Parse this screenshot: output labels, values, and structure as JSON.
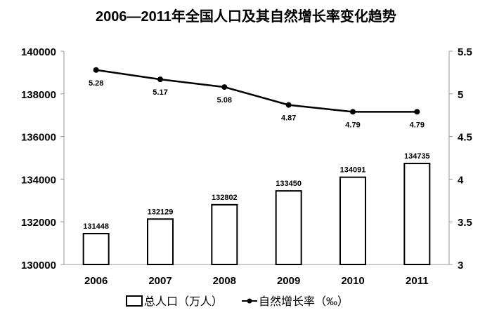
{
  "chart_data": {
    "type": "bar+line",
    "title": "2006—2011年全国人口及其自然增长率变化趋势",
    "categories": [
      "2006",
      "2007",
      "2008",
      "2009",
      "2010",
      "2011"
    ],
    "series": [
      {
        "name": "总人口（万人）",
        "type": "bar",
        "axis": "left",
        "values": [
          131448,
          132129,
          132802,
          133450,
          134091,
          134735
        ],
        "labels": [
          "131448",
          "132129",
          "132802",
          "133450",
          "134091",
          "134735"
        ]
      },
      {
        "name": "自然增长率（‰）",
        "type": "line",
        "axis": "right",
        "values": [
          5.28,
          5.17,
          5.08,
          4.87,
          4.79,
          4.79
        ],
        "labels": [
          "5.28",
          "5.17",
          "5.08",
          "4.87",
          "4.79",
          "4.79"
        ]
      }
    ],
    "left_axis": {
      "range": [
        130000,
        140000
      ],
      "ticks": [
        "130000",
        "132000",
        "134000",
        "136000",
        "138000",
        "140000"
      ]
    },
    "right_axis": {
      "range": [
        3,
        5.5
      ],
      "ticks": [
        "3",
        "3.5",
        "4",
        "4.5",
        "5",
        "5.5"
      ]
    },
    "grid": false,
    "legend_position": "bottom",
    "colors": {
      "bar_fill": "#ffffff",
      "bar_stroke": "#000000",
      "line": "#000000"
    }
  }
}
